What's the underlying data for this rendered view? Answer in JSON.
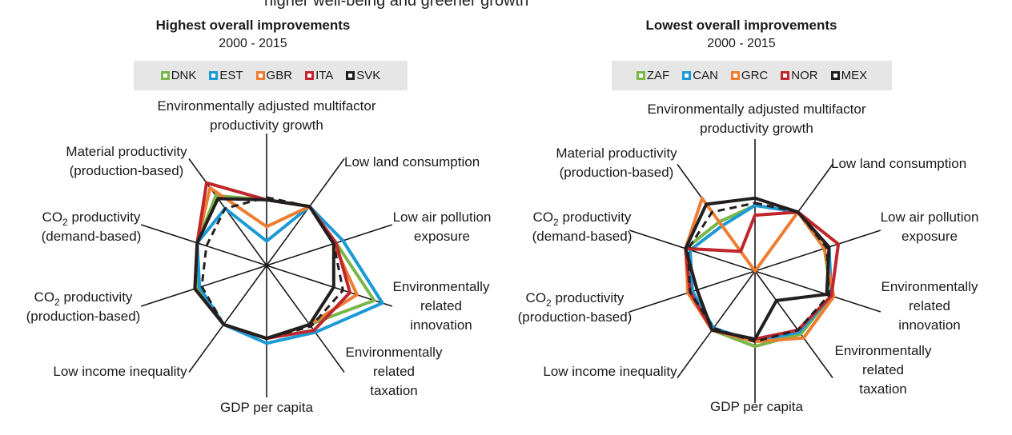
{
  "header_partial": "higher well-being and greener growth",
  "axes": [
    {
      "lines": [
        "Environmentally adjusted multifactor",
        "productivity growth"
      ]
    },
    {
      "lines": [
        "Low land consumption"
      ]
    },
    {
      "lines": [
        "Low air pollution",
        "exposure"
      ]
    },
    {
      "lines": [
        "Environmentally",
        "related",
        "innovation"
      ]
    },
    {
      "lines": [
        "Environmentally",
        "related",
        "taxation"
      ]
    },
    {
      "lines": [
        "GDP per capita"
      ]
    },
    {
      "lines": [
        "Low income inequality"
      ]
    },
    {
      "lines": [
        "CO2 productivity",
        "(production-based)"
      ],
      "subscript": true
    },
    {
      "lines": [
        "CO2 productivity",
        "(demand-based)"
      ],
      "subscript": true
    },
    {
      "lines": [
        "Material productivity",
        "(production-based)"
      ]
    }
  ],
  "chart_data": [
    {
      "type": "radar",
      "title": "Highest overall improvements",
      "subtitle": "2000 - 2015",
      "legend_placement": "top",
      "rlim": [
        0,
        1
      ],
      "categories": [
        "Environmentally adjusted multifactor productivity growth",
        "Low land consumption",
        "Low air pollution exposure",
        "Environmentally related innovation",
        "Environmentally related taxation",
        "GDP per capita",
        "Low income inequality",
        "CO2 productivity (production-based)",
        "CO2 productivity (demand-based)",
        "Material productivity (production-based)"
      ],
      "series": [
        {
          "name": "DNK",
          "color": "#7ab648",
          "dashed": false,
          "values": [
            0.54,
            0.6,
            0.6,
            0.93,
            0.6,
            0.6,
            0.6,
            0.6,
            0.6,
            0.71
          ]
        },
        {
          "name": "EST",
          "color": "#1b9ad6",
          "dashed": false,
          "values": [
            0.2,
            0.6,
            0.66,
            1.0,
            0.68,
            0.64,
            0.6,
            0.58,
            0.6,
            0.58
          ]
        },
        {
          "name": "GBR",
          "color": "#ed7d31",
          "dashed": false,
          "values": [
            0.32,
            0.6,
            0.58,
            0.78,
            0.6,
            0.6,
            0.6,
            0.62,
            0.6,
            0.79
          ]
        },
        {
          "name": "ITA",
          "color": "#c0272d",
          "dashed": false,
          "values": [
            0.54,
            0.6,
            0.6,
            0.72,
            0.66,
            0.6,
            0.6,
            0.62,
            0.6,
            0.84
          ]
        },
        {
          "name": "SVK",
          "color": "#231f20",
          "dashed": false,
          "values": [
            0.54,
            0.6,
            0.58,
            0.58,
            0.6,
            0.6,
            0.6,
            0.62,
            0.6,
            0.68
          ]
        },
        {
          "name": "",
          "color": "#231f20",
          "dashed": true,
          "values": [
            0.56,
            0.6,
            0.58,
            0.66,
            0.62,
            0.6,
            0.6,
            0.56,
            0.52,
            0.58
          ]
        }
      ]
    },
    {
      "type": "radar",
      "title": "Lowest overall improvements",
      "subtitle": "2000 - 2015",
      "legend_placement": "top",
      "rlim": [
        0,
        1
      ],
      "categories": [
        "Environmentally adjusted multifactor productivity growth",
        "Low land consumption",
        "Low air pollution exposure",
        "Environmentally related innovation",
        "Environmentally related taxation",
        "GDP per capita",
        "Low income inequality",
        "CO2 productivity (production-based)",
        "CO2 productivity (demand-based)",
        "Material productivity (production-based)"
      ],
      "series": [
        {
          "name": "ZAF",
          "color": "#7ab648",
          "dashed": false,
          "values": [
            0.54,
            0.6,
            0.6,
            0.66,
            0.64,
            0.62,
            0.6,
            0.54,
            0.6,
            0.5
          ]
        },
        {
          "name": "CAN",
          "color": "#1b9ad6",
          "dashed": false,
          "values": [
            0.54,
            0.6,
            0.64,
            0.66,
            0.62,
            0.58,
            0.58,
            0.54,
            0.56,
            0.46
          ]
        },
        {
          "name": "GRC",
          "color": "#ed7d31",
          "dashed": false,
          "values": [
            0.0,
            0.6,
            0.6,
            0.68,
            0.68,
            0.58,
            0.6,
            0.58,
            0.6,
            0.74
          ]
        },
        {
          "name": "NOR",
          "color": "#c0272d",
          "dashed": false,
          "values": [
            0.46,
            0.6,
            0.72,
            0.66,
            0.6,
            0.56,
            0.6,
            0.56,
            0.6,
            0.2
          ]
        },
        {
          "name": "MEX",
          "color": "#231f20",
          "dashed": false,
          "values": [
            0.6,
            0.6,
            0.64,
            0.62,
            0.3,
            0.56,
            0.6,
            0.5,
            0.6,
            0.68
          ]
        },
        {
          "name": "",
          "color": "#231f20",
          "dashed": true,
          "values": [
            0.56,
            0.6,
            0.62,
            0.64,
            0.6,
            0.58,
            0.58,
            0.56,
            0.58,
            0.6
          ]
        }
      ]
    }
  ]
}
